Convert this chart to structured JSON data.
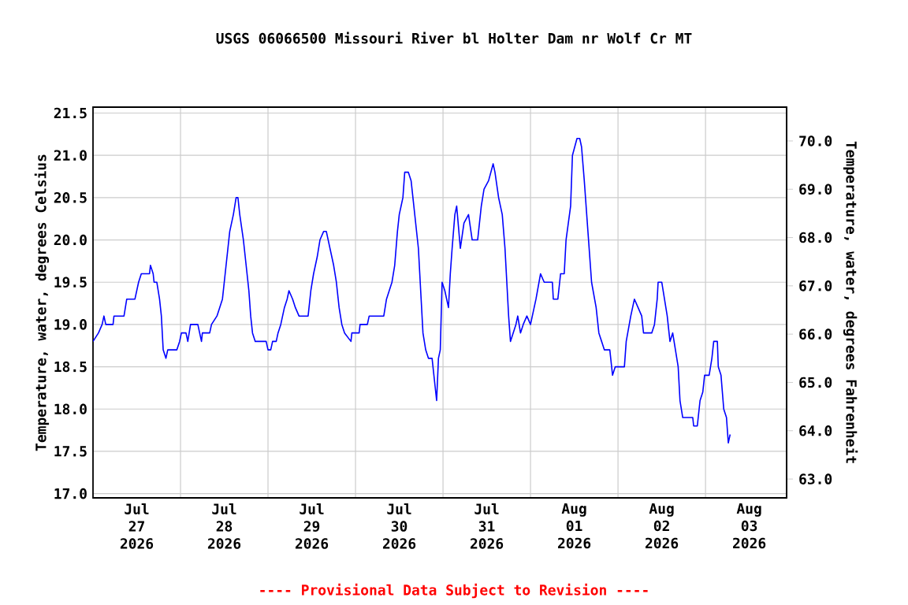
{
  "chart_data": {
    "type": "line",
    "title": "USGS 06066500 Missouri River bl Holter Dam nr Wolf Cr MT",
    "ylabel": "Temperature, water, degrees Celsius",
    "y2label": "Temperature, water, degrees Fahrenheit",
    "annotations": [
      "---- Provisional Data Subject to Revision ----"
    ],
    "xlim": [
      "2026-07-27T00:00",
      "2026-08-03T22:15"
    ],
    "xticks": [
      {
        "value": "2026-07-27T12:00",
        "label": "Jul 27 2026"
      },
      {
        "value": "2026-07-28T12:00",
        "label": "Jul 28 2026"
      },
      {
        "value": "2026-07-29T12:00",
        "label": "Jul 29 2026"
      },
      {
        "value": "2026-07-30T12:00",
        "label": "Jul 30 2026"
      },
      {
        "value": "2026-07-31T12:00",
        "label": "Jul 31 2026"
      },
      {
        "value": "2026-08-01T12:00",
        "label": "Aug 01 2026"
      },
      {
        "value": "2026-08-02T12:00",
        "label": "Aug 02 2026"
      },
      {
        "value": "2026-08-03T12:00",
        "label": "Aug 03 2026"
      },
      {
        "value": "2026-07-28T00:00",
        "label": null
      },
      {
        "value": "2026-07-29T00:00",
        "label": null
      },
      {
        "value": "2026-07-30T00:00",
        "label": null
      },
      {
        "value": "2026-07-31T00:00",
        "label": null
      },
      {
        "value": "2026-08-01T00:00",
        "label": null
      },
      {
        "value": "2026-08-02T00:00",
        "label": null
      },
      {
        "value": "2026-08-03T00:00",
        "label": null
      }
    ],
    "ylim": [
      16.95,
      21.57
    ],
    "yticks": [
      {
        "value": 17,
        "label": "17.0"
      },
      {
        "value": 17.5,
        "label": "17.5"
      },
      {
        "value": 18,
        "label": "18.0"
      },
      {
        "value": 18.5,
        "label": "18.5"
      },
      {
        "value": 19,
        "label": "19.0"
      },
      {
        "value": 19.5,
        "label": "19.5"
      },
      {
        "value": 20,
        "label": "20.0"
      },
      {
        "value": 20.5,
        "label": "20.5"
      },
      {
        "value": 21,
        "label": "21.0"
      },
      {
        "value": 21.5,
        "label": "21.5"
      }
    ],
    "y2lim": [
      62.61,
      70.7
    ],
    "y2ticks": [
      {
        "value": 63,
        "label": "63.0"
      },
      {
        "value": 64,
        "label": "64.0"
      },
      {
        "value": 65,
        "label": "65.0"
      },
      {
        "value": 66,
        "label": "66.0"
      },
      {
        "value": 67,
        "label": "67.0"
      },
      {
        "value": 68,
        "label": "68.0"
      },
      {
        "value": 69,
        "label": "69.0"
      },
      {
        "value": 70,
        "label": "70.0"
      }
    ],
    "grid": true,
    "series": [
      {
        "color": "#0000ff",
        "x": [
          "2026-07-27T00:00",
          "2026-07-27T01:30",
          "2026-07-27T02:30",
          "2026-07-27T03:00",
          "2026-07-27T03:30",
          "2026-07-27T05:30",
          "2026-07-27T05:45",
          "2026-07-27T08:30",
          "2026-07-27T09:15",
          "2026-07-27T11:30",
          "2026-07-27T12:30",
          "2026-07-27T13:15",
          "2026-07-27T15:30",
          "2026-07-27T15:45",
          "2026-07-27T16:30",
          "2026-07-27T16:45",
          "2026-07-27T17:30",
          "2026-07-27T18:15",
          "2026-07-27T18:45",
          "2026-07-27T19:15",
          "2026-07-27T20:00",
          "2026-07-27T20:30",
          "2026-07-27T23:00",
          "2026-07-27T23:45",
          "2026-07-28T00:15",
          "2026-07-28T01:30",
          "2026-07-28T02:00",
          "2026-07-28T02:45",
          "2026-07-28T04:45",
          "2026-07-28T05:15",
          "2026-07-28T05:45",
          "2026-07-28T06:00",
          "2026-07-28T08:00",
          "2026-07-28T08:30",
          "2026-07-28T10:00",
          "2026-07-28T10:45",
          "2026-07-28T11:30",
          "2026-07-28T12:30",
          "2026-07-28T13:00",
          "2026-07-28T13:30",
          "2026-07-28T14:00",
          "2026-07-28T14:30",
          "2026-07-28T15:15",
          "2026-07-28T15:45",
          "2026-07-28T16:15",
          "2026-07-28T17:15",
          "2026-07-28T17:45",
          "2026-07-28T18:45",
          "2026-07-28T19:15",
          "2026-07-28T19:45",
          "2026-07-28T20:30",
          "2026-07-28T23:30",
          "2026-07-29T00:00",
          "2026-07-29T00:45",
          "2026-07-29T01:15",
          "2026-07-29T02:15",
          "2026-07-29T02:45",
          "2026-07-29T03:30",
          "2026-07-29T04:30",
          "2026-07-29T05:15",
          "2026-07-29T05:45",
          "2026-07-29T06:45",
          "2026-07-29T07:30",
          "2026-07-29T08:30",
          "2026-07-29T11:00",
          "2026-07-29T11:45",
          "2026-07-29T12:30",
          "2026-07-29T13:30",
          "2026-07-29T14:15",
          "2026-07-29T15:15",
          "2026-07-29T16:00",
          "2026-07-29T17:00",
          "2026-07-29T18:00",
          "2026-07-29T18:45",
          "2026-07-29T19:30",
          "2026-07-29T20:15",
          "2026-07-29T21:00",
          "2026-07-29T22:45",
          "2026-07-29T23:00",
          "2026-07-30T01:00",
          "2026-07-30T01:15",
          "2026-07-30T03:15",
          "2026-07-30T03:45",
          "2026-07-30T07:45",
          "2026-07-30T08:30",
          "2026-07-30T10:00",
          "2026-07-30T10:45",
          "2026-07-30T11:30",
          "2026-07-30T12:00",
          "2026-07-30T13:00",
          "2026-07-30T13:30",
          "2026-07-30T14:30",
          "2026-07-30T15:15",
          "2026-07-30T16:15",
          "2026-07-30T17:15",
          "2026-07-30T18:00",
          "2026-07-30T18:30",
          "2026-07-30T19:15",
          "2026-07-30T20:00",
          "2026-07-30T21:00",
          "2026-07-30T21:30",
          "2026-07-30T22:15",
          "2026-07-30T22:45",
          "2026-07-30T23:15",
          "2026-07-30T23:45",
          "2026-07-31T00:30",
          "2026-07-31T01:30",
          "2026-07-31T02:00",
          "2026-07-31T02:30",
          "2026-07-31T03:15",
          "2026-07-31T03:45",
          "2026-07-31T04:45",
          "2026-07-31T05:45",
          "2026-07-31T07:00",
          "2026-07-31T08:00",
          "2026-07-31T09:30",
          "2026-07-31T10:30",
          "2026-07-31T11:15",
          "2026-07-31T12:30",
          "2026-07-31T13:45",
          "2026-07-31T14:15",
          "2026-07-31T15:15",
          "2026-07-31T16:15",
          "2026-07-31T17:00",
          "2026-07-31T18:00",
          "2026-07-31T18:30",
          "2026-07-31T20:00",
          "2026-07-31T20:30",
          "2026-07-31T21:15",
          "2026-07-31T22:00",
          "2026-07-31T23:00",
          "2026-08-01T00:00",
          "2026-08-01T01:30",
          "2026-08-01T02:45",
          "2026-08-01T03:45",
          "2026-08-01T06:00",
          "2026-08-01T06:15",
          "2026-08-01T07:30",
          "2026-08-01T08:15",
          "2026-08-01T09:15",
          "2026-08-01T09:45",
          "2026-08-01T11:00",
          "2026-08-01T11:30",
          "2026-08-01T12:45",
          "2026-08-01T13:30",
          "2026-08-01T14:00",
          "2026-08-01T14:45",
          "2026-08-01T15:45",
          "2026-08-01T16:45",
          "2026-08-01T18:00",
          "2026-08-01T18:45",
          "2026-08-01T19:30",
          "2026-08-01T20:15",
          "2026-08-01T21:45",
          "2026-08-01T22:30",
          "2026-08-01T23:15",
          "2026-08-02T01:45",
          "2026-08-02T02:15",
          "2026-08-02T03:30",
          "2026-08-02T04:30",
          "2026-08-02T05:30",
          "2026-08-02T06:30",
          "2026-08-02T07:00",
          "2026-08-02T09:15",
          "2026-08-02T10:00",
          "2026-08-02T10:45",
          "2026-08-02T11:00",
          "2026-08-02T12:00",
          "2026-08-02T12:45",
          "2026-08-02T13:30",
          "2026-08-02T14:15",
          "2026-08-02T15:00",
          "2026-08-02T15:45",
          "2026-08-02T16:30",
          "2026-08-02T17:00",
          "2026-08-02T17:45",
          "2026-08-02T18:30",
          "2026-08-02T20:30",
          "2026-08-02T20:45",
          "2026-08-02T21:45",
          "2026-08-02T22:30",
          "2026-08-02T23:15",
          "2026-08-02T23:45",
          "2026-08-03T01:00",
          "2026-08-03T01:45",
          "2026-08-03T02:15",
          "2026-08-03T03:15",
          "2026-08-03T03:30",
          "2026-08-03T04:15",
          "2026-08-03T05:00",
          "2026-08-03T05:45",
          "2026-08-03T06:15",
          "2026-08-03T06:45"
        ],
        "values": [
          18.8,
          18.9,
          19.0,
          19.1,
          19.0,
          19.0,
          19.1,
          19.1,
          19.3,
          19.3,
          19.5,
          19.6,
          19.6,
          19.7,
          19.6,
          19.5,
          19.5,
          19.3,
          19.1,
          18.7,
          18.6,
          18.7,
          18.7,
          18.8,
          18.9,
          18.9,
          18.8,
          19.0,
          19.0,
          18.9,
          18.8,
          18.9,
          18.9,
          19.0,
          19.1,
          19.2,
          19.3,
          19.7,
          19.9,
          20.1,
          20.2,
          20.3,
          20.5,
          20.5,
          20.3,
          20.0,
          19.8,
          19.4,
          19.1,
          18.9,
          18.8,
          18.8,
          18.7,
          18.7,
          18.8,
          18.8,
          18.9,
          19.0,
          19.2,
          19.3,
          19.4,
          19.3,
          19.2,
          19.1,
          19.1,
          19.4,
          19.6,
          19.8,
          20.0,
          20.1,
          20.1,
          19.9,
          19.7,
          19.5,
          19.2,
          19.0,
          18.9,
          18.8,
          18.9,
          18.9,
          19.0,
          19.0,
          19.1,
          19.1,
          19.3,
          19.5,
          19.7,
          20.1,
          20.3,
          20.5,
          20.8,
          20.8,
          20.7,
          20.3,
          19.9,
          19.3,
          18.9,
          18.7,
          18.6,
          18.6,
          18.4,
          18.1,
          18.6,
          18.7,
          19.5,
          19.4,
          19.2,
          19.6,
          19.9,
          20.3,
          20.4,
          19.9,
          20.2,
          20.3,
          20.0,
          20.0,
          20.4,
          20.6,
          20.7,
          20.9,
          20.8,
          20.5,
          20.3,
          19.9,
          19.1,
          18.8,
          19.0,
          19.1,
          18.9,
          19.0,
          19.1,
          19.0,
          19.3,
          19.6,
          19.5,
          19.5,
          19.3,
          19.3,
          19.6,
          19.6,
          20.0,
          20.4,
          21.0,
          21.2,
          21.2,
          21.1,
          20.7,
          20.1,
          19.5,
          19.2,
          18.9,
          18.8,
          18.7,
          18.7,
          18.4,
          18.5,
          18.5,
          18.8,
          19.1,
          19.3,
          19.2,
          19.1,
          18.9,
          18.9,
          19.0,
          19.3,
          19.5,
          19.5,
          19.3,
          19.1,
          18.8,
          18.9,
          18.7,
          18.5,
          18.1,
          17.9,
          17.9,
          17.9,
          17.8,
          17.8,
          18.1,
          18.2,
          18.4,
          18.4,
          18.6,
          18.8,
          18.8,
          18.5,
          18.4,
          18.0,
          17.9,
          17.6,
          17.7
        ]
      }
    ]
  }
}
